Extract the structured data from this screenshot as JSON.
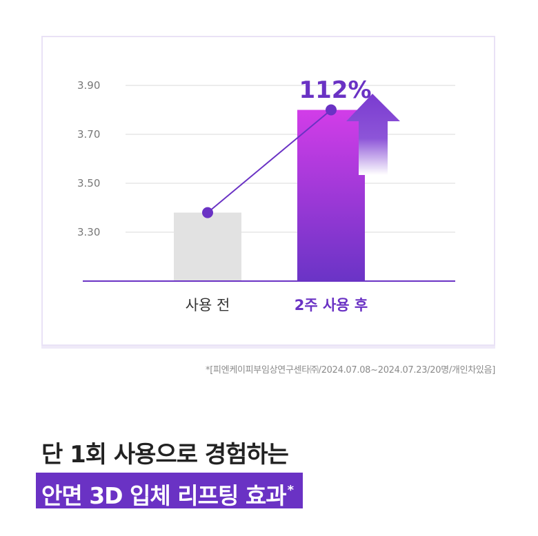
{
  "chart_data": {
    "type": "bar",
    "categories": [
      "사용 전",
      "2주 사용 후"
    ],
    "values": [
      3.38,
      3.8
    ],
    "yticks": [
      "3.90",
      "3.70",
      "3.50",
      "3.30"
    ],
    "ylim": [
      3.1,
      3.9
    ],
    "grid": true,
    "annotation": "112%",
    "bar_colors": [
      "#e2e2e2",
      "#8a2fd6"
    ],
    "accent_color": "#6a32c4",
    "highlight_color": "#cf3ce6"
  },
  "footnote": "*[피엔케이피부임상연구센타㈜/2024.07.08~2024.07.23/20명/개인차있음]",
  "headline": {
    "line1": "단 1회 사용으로 경험하는",
    "line2": "안면 3D 입체 리프팅 효과",
    "line2_mark": "*"
  }
}
